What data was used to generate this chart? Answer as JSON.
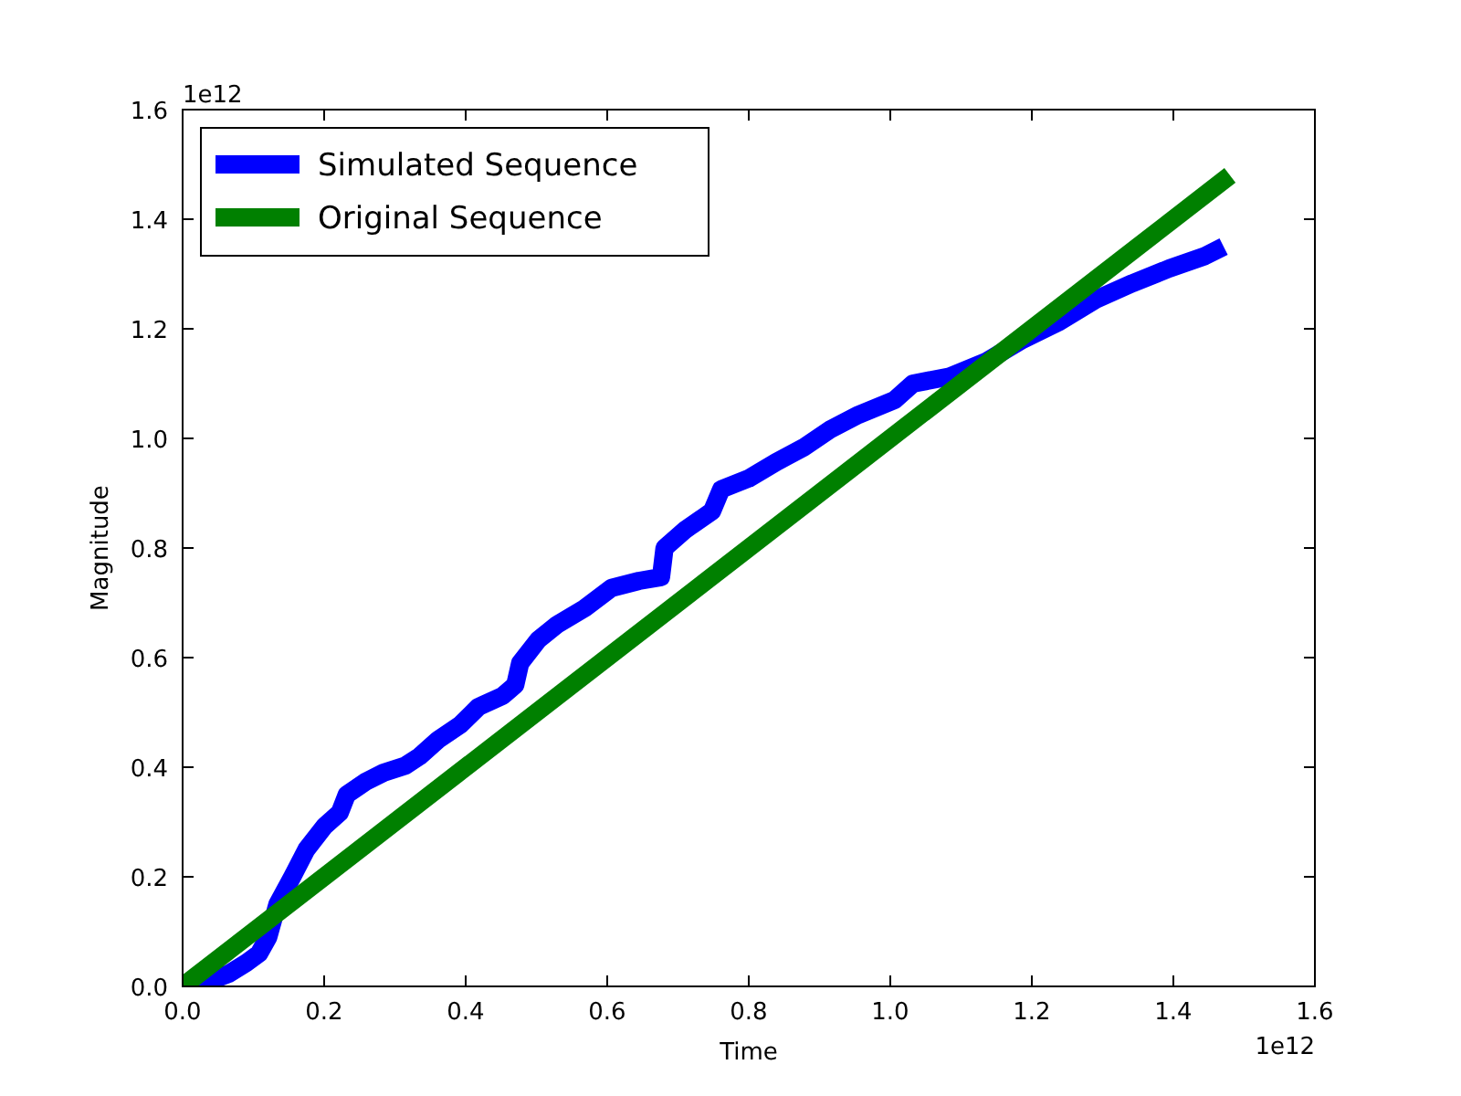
{
  "chart_data": {
    "type": "line",
    "xlabel": "Time",
    "ylabel": "Magnitude",
    "annotations": [
      "1e12",
      "1e12"
    ],
    "xlim": [
      0,
      1.6
    ],
    "ylim": [
      0,
      1.6
    ],
    "xticks": [
      {
        "value": 0,
        "label": "0.0"
      },
      0.2,
      0.4,
      0.6,
      0.8,
      {
        "value": 1,
        "label": "1.0"
      },
      1.2,
      1.4,
      1.6
    ],
    "yticks": [
      {
        "value": 0,
        "label": "0.0"
      },
      0.2,
      0.4,
      0.6,
      0.8,
      {
        "value": 1,
        "label": "1.0"
      },
      1.2,
      1.4,
      1.6
    ],
    "legend": "top left",
    "grid": false,
    "line_style": "solid",
    "marker": "none",
    "series": [
      {
        "name": "Simulated Sequence",
        "color": "#0000ff",
        "x": [
          0.013,
          0.039,
          0.065,
          0.09,
          0.108,
          0.121,
          0.134,
          0.155,
          0.175,
          0.201,
          0.222,
          0.232,
          0.258,
          0.284,
          0.315,
          0.335,
          0.361,
          0.392,
          0.418,
          0.452,
          0.47,
          0.477,
          0.503,
          0.529,
          0.568,
          0.606,
          0.645,
          0.676,
          0.681,
          0.71,
          0.748,
          0.761,
          0.8,
          0.839,
          0.877,
          0.916,
          0.955,
          1.006,
          1.032,
          1.084,
          1.135,
          1.187,
          1.239,
          1.29,
          1.342,
          1.394,
          1.445,
          1.471
        ],
        "values": [
          0,
          0.01,
          0.023,
          0.043,
          0.06,
          0.09,
          0.15,
          0.2,
          0.25,
          0.293,
          0.317,
          0.35,
          0.373,
          0.39,
          0.403,
          0.42,
          0.45,
          0.477,
          0.51,
          0.53,
          0.55,
          0.59,
          0.633,
          0.66,
          0.69,
          0.727,
          0.74,
          0.747,
          0.8,
          0.833,
          0.867,
          0.907,
          0.927,
          0.957,
          0.983,
          1.017,
          1.043,
          1.07,
          1.1,
          1.113,
          1.14,
          1.18,
          1.213,
          1.253,
          1.283,
          1.31,
          1.333,
          1.35
        ]
      },
      {
        "name": "Original Sequence",
        "color": "#008000",
        "x": [
          0,
          1.48
        ],
        "values": [
          0,
          1.48
        ]
      }
    ]
  }
}
